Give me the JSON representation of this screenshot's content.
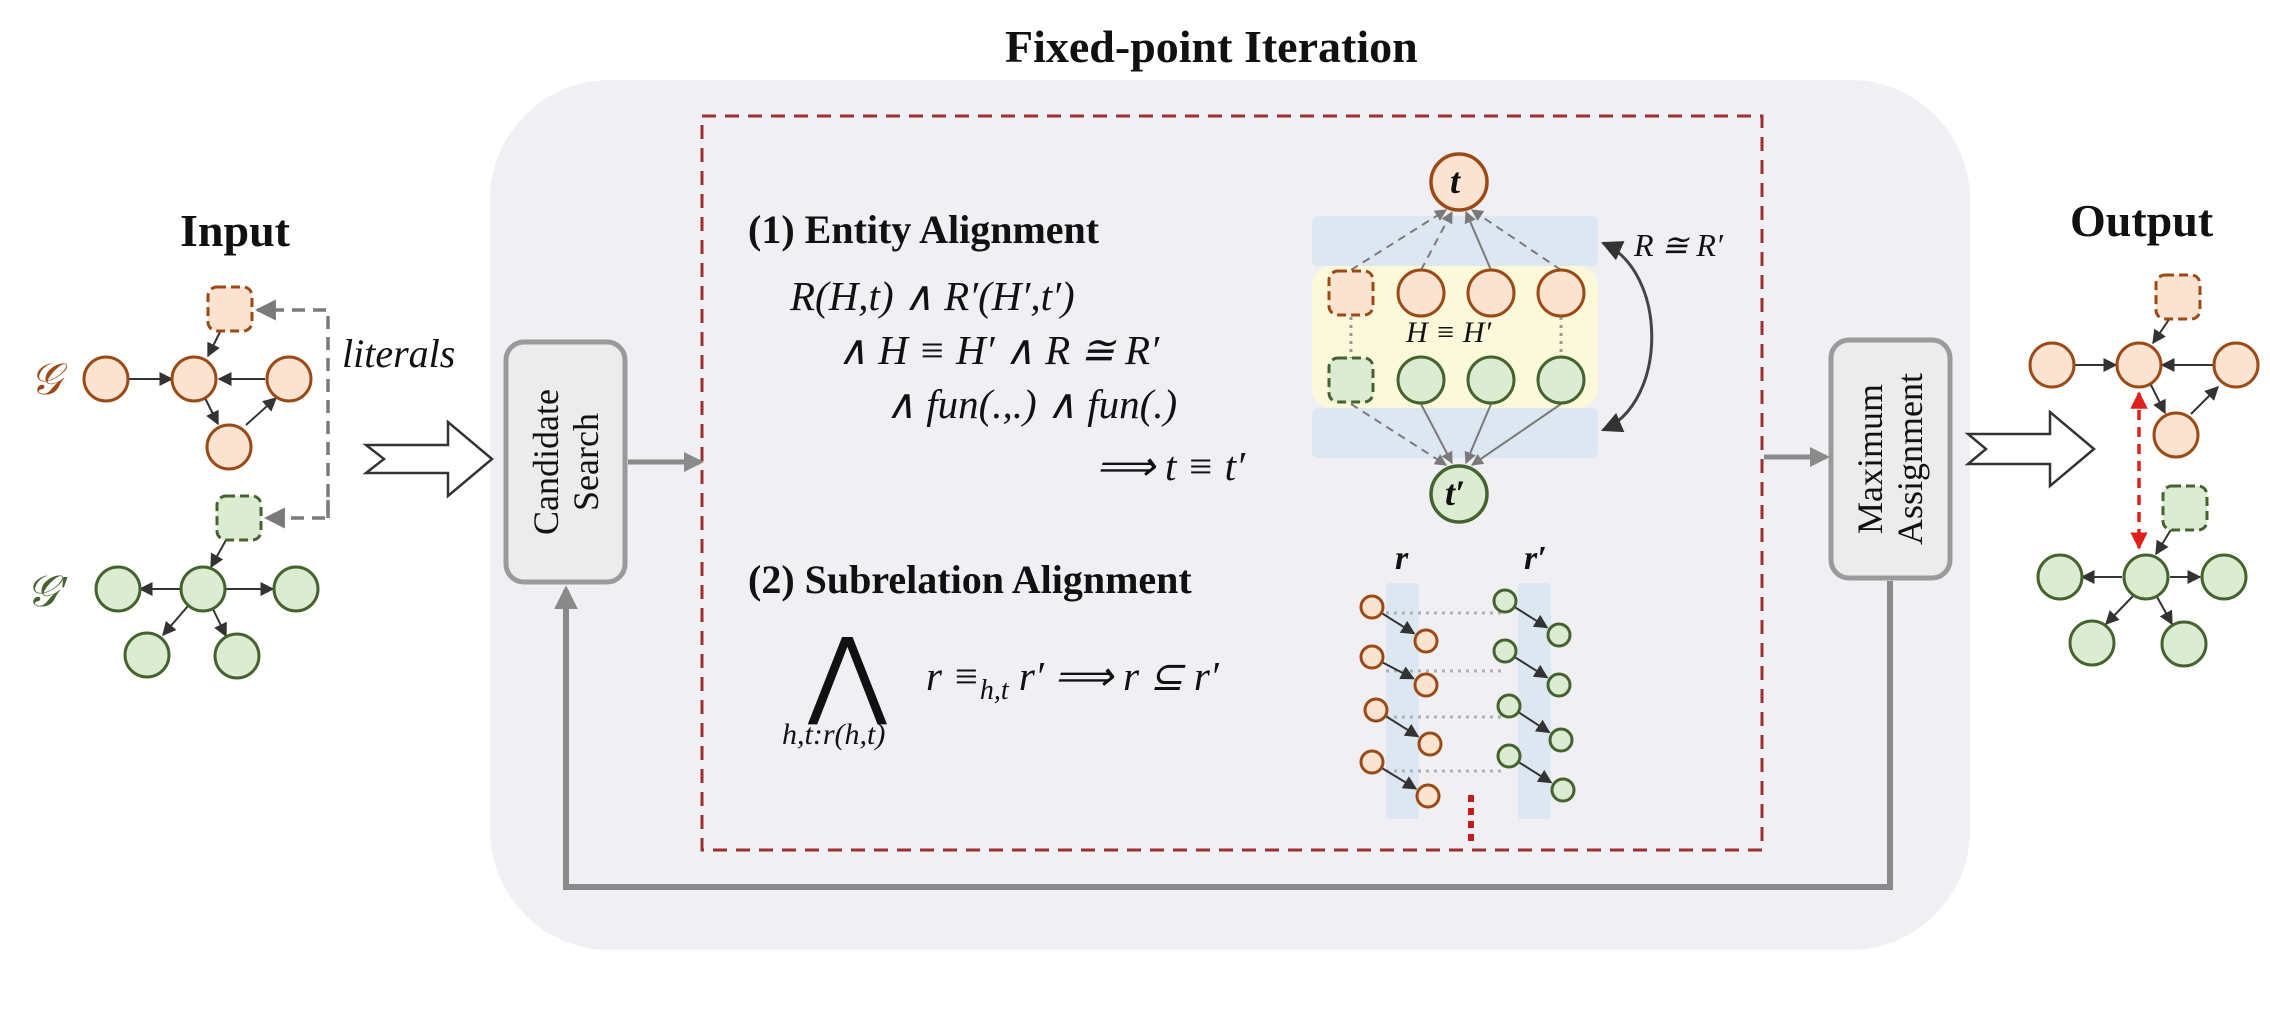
{
  "header": {
    "title": "Fixed-point Iteration"
  },
  "input": {
    "title": "Input",
    "graph_g_label": "𝒢",
    "graph_g_prime_label": "𝒢′",
    "literals_label": "literals"
  },
  "candidate_search": {
    "line1": "Candidate",
    "line2": "Search"
  },
  "maximum_assignment": {
    "line1": "Maximum",
    "line2": "Assignment"
  },
  "output": {
    "title": "Output"
  },
  "entity_alignment": {
    "heading": "(1) Entity Alignment",
    "rule_line1": "R(H,t) ∧ R′(H′,t′)",
    "rule_line2": "∧ H  ≡ H′ ∧ R  ≅ R′",
    "rule_line3": "∧ fun(.,.) ∧ fun(.)",
    "rule_line4": "⟹ t ≡ t′",
    "node_t": "t",
    "node_t_prime": "t′",
    "h_equiv_label": "H  ≡ H′",
    "r_cong_label": "R  ≅ R′"
  },
  "subrelation_alignment": {
    "heading": "(2) Subrelation Alignment",
    "big_and": "⋀",
    "big_and_subscript": "h,t:r(h,t)",
    "rule": "r ≡",
    "rule_sub": "h,t",
    "rule_rest": "r′ ⟹ r  ⊆ r′",
    "col_r": "r",
    "col_r_prime": "r′"
  },
  "colors": {
    "orange_stroke": "#9c4a15",
    "orange_fill": "#fbe3d1",
    "green_stroke": "#45632e",
    "green_fill": "#dcecd2",
    "panel_bg": "#f0eff4",
    "dashed_box": "#9e2f2f",
    "flow_arrow": "#8a8a8a",
    "band_blue": "#dde7f1",
    "band_yellow": "#fbf9da"
  }
}
